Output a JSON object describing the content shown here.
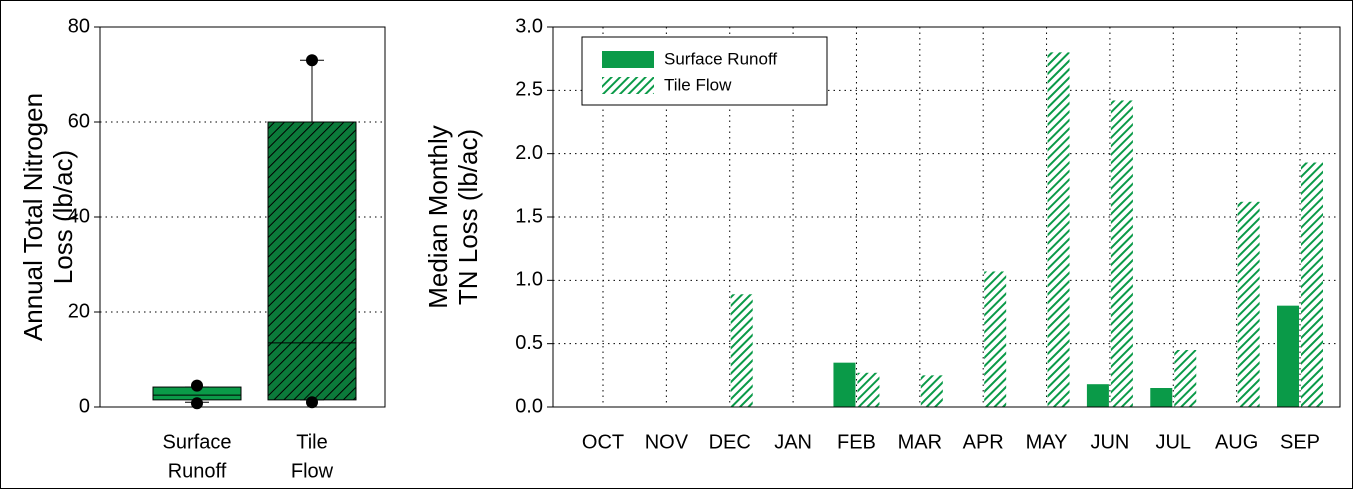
{
  "chart_data": [
    {
      "type": "box",
      "ylabel": [
        "Annual Total Nitrogen",
        "Loss (lb/ac)"
      ],
      "categories": [
        [
          "Surface",
          "Runoff"
        ],
        [
          "Tile",
          "Flow"
        ]
      ],
      "boxes": [
        {
          "whisker_low": 1,
          "q1": 1.5,
          "median": 2.5,
          "q3": 4.2,
          "whisker_high": 4.2,
          "outliers": [
            4.5,
            0.8
          ],
          "color": "#0a9a48",
          "pattern": "solid"
        },
        {
          "whisker_low": 1.5,
          "q1": 1.5,
          "median": 13.5,
          "q3": 60,
          "whisker_high": 73,
          "outliers": [
            73,
            1
          ],
          "color": "#0b7a3a",
          "pattern": "hatch"
        }
      ],
      "ylim": [
        0,
        80
      ],
      "yticks": [
        0,
        20,
        40,
        60,
        80
      ],
      "grid": true
    },
    {
      "type": "bar",
      "ylabel": [
        "Median Monthly",
        "TN Loss (lb/ac)"
      ],
      "categories": [
        "OCT",
        "NOV",
        "DEC",
        "JAN",
        "FEB",
        "MAR",
        "APR",
        "MAY",
        "JUN",
        "JUL",
        "AUG",
        "SEP"
      ],
      "series": [
        {
          "name": "Surface Runoff",
          "color": "#0a9a48",
          "pattern": "solid",
          "values": [
            0,
            0,
            0,
            0,
            0.35,
            0,
            0,
            0,
            0.18,
            0.15,
            0,
            0.8
          ]
        },
        {
          "name": "Tile Flow",
          "color": "#0a9a48",
          "pattern": "hatch",
          "values": [
            0,
            0,
            0.89,
            0,
            0.27,
            0.25,
            1.07,
            2.8,
            2.42,
            0.45,
            1.62,
            1.93
          ]
        }
      ],
      "ylim": [
        0,
        3
      ],
      "yticks": [
        {
          "value": 0,
          "label": "0.0"
        },
        {
          "value": 0.5,
          "label": "0.5"
        },
        {
          "value": 1,
          "label": "1.0"
        },
        {
          "value": 1.5,
          "label": "1.5"
        },
        {
          "value": 2,
          "label": "2.0"
        },
        {
          "value": 2.5,
          "label": "2.5"
        },
        {
          "value": 3,
          "label": "3.0"
        }
      ],
      "grid": true,
      "legend": "upper-left"
    }
  ]
}
